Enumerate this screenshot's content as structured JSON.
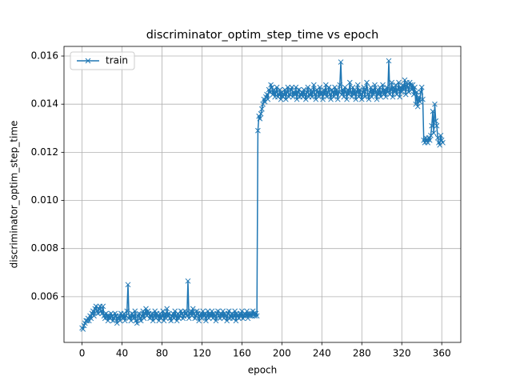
{
  "chart_data": {
    "type": "line",
    "title": "discriminator_optim_step_time vs epoch",
    "xlabel": "epoch",
    "ylabel": "discriminator_optim_step_time",
    "legend": "upper left",
    "grid": true,
    "xlim": [
      -18.05,
      379.05
    ],
    "ylim": [
      0.0041,
      0.0164
    ],
    "xticks": [
      0,
      40,
      80,
      120,
      160,
      200,
      240,
      280,
      320,
      360
    ],
    "yticks": [
      0.006,
      0.008,
      {
        "value": 0.01,
        "label": "0.010"
      },
      0.012,
      0.014,
      0.016
    ],
    "x": [
      0,
      1,
      2,
      3,
      4,
      5,
      6,
      7,
      8,
      9,
      10,
      11,
      12,
      13,
      14,
      15,
      16,
      17,
      18,
      19,
      20,
      21,
      22,
      23,
      24,
      25,
      26,
      27,
      28,
      29,
      30,
      31,
      32,
      33,
      34,
      35,
      36,
      37,
      38,
      39,
      40,
      41,
      42,
      43,
      44,
      45,
      46,
      47,
      48,
      49,
      50,
      51,
      52,
      53,
      54,
      55,
      56,
      57,
      58,
      59,
      60,
      61,
      62,
      63,
      64,
      65,
      66,
      67,
      68,
      69,
      70,
      71,
      72,
      73,
      74,
      75,
      76,
      77,
      78,
      79,
      80,
      81,
      82,
      83,
      84,
      85,
      86,
      87,
      88,
      89,
      90,
      91,
      92,
      93,
      94,
      95,
      96,
      97,
      98,
      99,
      100,
      101,
      102,
      103,
      104,
      105,
      106,
      107,
      108,
      109,
      110,
      111,
      112,
      113,
      114,
      115,
      116,
      117,
      118,
      119,
      120,
      121,
      122,
      123,
      124,
      125,
      126,
      127,
      128,
      129,
      130,
      131,
      132,
      133,
      134,
      135,
      136,
      137,
      138,
      139,
      140,
      141,
      142,
      143,
      144,
      145,
      146,
      147,
      148,
      149,
      150,
      151,
      152,
      153,
      154,
      155,
      156,
      157,
      158,
      159,
      160,
      161,
      162,
      163,
      164,
      165,
      166,
      167,
      168,
      169,
      170,
      171,
      172,
      173,
      174,
      175,
      176,
      177,
      178,
      179,
      180,
      181,
      182,
      183,
      184,
      185,
      186,
      187,
      188,
      189,
      190,
      191,
      192,
      193,
      194,
      195,
      196,
      197,
      198,
      199,
      200,
      201,
      202,
      203,
      204,
      205,
      206,
      207,
      208,
      209,
      210,
      211,
      212,
      213,
      214,
      215,
      216,
      217,
      218,
      219,
      220,
      221,
      222,
      223,
      224,
      225,
      226,
      227,
      228,
      229,
      230,
      231,
      232,
      233,
      234,
      235,
      236,
      237,
      238,
      239,
      240,
      241,
      242,
      243,
      244,
      245,
      246,
      247,
      248,
      249,
      250,
      251,
      252,
      253,
      254,
      255,
      256,
      257,
      258,
      259,
      260,
      261,
      262,
      263,
      264,
      265,
      266,
      267,
      268,
      269,
      270,
      271,
      272,
      273,
      274,
      275,
      276,
      277,
      278,
      279,
      280,
      281,
      282,
      283,
      284,
      285,
      286,
      287,
      288,
      289,
      290,
      291,
      292,
      293,
      294,
      295,
      296,
      297,
      298,
      299,
      300,
      301,
      302,
      303,
      304,
      305,
      306,
      307,
      308,
      309,
      310,
      311,
      312,
      313,
      314,
      315,
      316,
      317,
      318,
      319,
      320,
      321,
      322,
      323,
      324,
      325,
      326,
      327,
      328,
      329,
      330,
      331,
      332,
      333,
      334,
      335,
      336,
      337,
      338,
      339,
      340,
      341,
      342,
      343,
      344,
      345,
      346,
      347,
      348,
      349,
      350,
      351,
      352,
      353,
      354,
      355,
      356,
      357,
      358,
      359,
      360,
      361
    ],
    "series": [
      {
        "name": "train",
        "color": "#1f77b4",
        "values": [
          0.0047,
          0.00465,
          0.0048,
          0.0049,
          0.005,
          0.005,
          0.0051,
          0.005,
          0.0052,
          0.0051,
          0.0053,
          0.0054,
          0.0052,
          0.0055,
          0.0056,
          0.0054,
          0.0053,
          0.0055,
          0.0056,
          0.0054,
          0.0053,
          0.0056,
          0.0052,
          0.0051,
          0.0053,
          0.0052,
          0.005,
          0.0052,
          0.0051,
          0.0053,
          0.0052,
          0.005,
          0.0051,
          0.0053,
          0.0052,
          0.0049,
          0.0051,
          0.0052,
          0.005,
          0.0053,
          0.0052,
          0.0051,
          0.0053,
          0.005,
          0.0052,
          0.0054,
          0.0065,
          0.0051,
          0.0052,
          0.005,
          0.0053,
          0.0052,
          0.0051,
          0.0054,
          0.005,
          0.0049,
          0.0052,
          0.0053,
          0.0051,
          0.005,
          0.0052,
          0.0054,
          0.0051,
          0.0053,
          0.0055,
          0.0052,
          0.0054,
          0.0053,
          0.0051,
          0.0052,
          0.0053,
          0.005,
          0.0052,
          0.0054,
          0.0051,
          0.0053,
          0.0052,
          0.005,
          0.0053,
          0.0051,
          0.0052,
          0.0054,
          0.005,
          0.0053,
          0.0051,
          0.0055,
          0.0052,
          0.0053,
          0.0051,
          0.005,
          0.0052,
          0.0053,
          0.0051,
          0.0054,
          0.0052,
          0.005,
          0.0053,
          0.0051,
          0.0052,
          0.0054,
          0.0053,
          0.0051,
          0.0052,
          0.0054,
          0.0053,
          0.0052,
          0.00665,
          0.0051,
          0.0053,
          0.0054,
          0.0052,
          0.0055,
          0.0053,
          0.0051,
          0.0052,
          0.0054,
          0.0053,
          0.005,
          0.0052,
          0.0053,
          0.0051,
          0.0054,
          0.0052,
          0.0053,
          0.005,
          0.0052,
          0.0054,
          0.0051,
          0.0053,
          0.0052,
          0.0054,
          0.0051,
          0.0053,
          0.0052,
          0.005,
          0.0053,
          0.0054,
          0.0052,
          0.0051,
          0.0053,
          0.0052,
          0.0054,
          0.0051,
          0.0053,
          0.0052,
          0.005,
          0.0053,
          0.0054,
          0.0051,
          0.0052,
          0.0053,
          0.0051,
          0.0052,
          0.0054,
          0.005,
          0.0053,
          0.0052,
          0.0051,
          0.0053,
          0.0052,
          0.0054,
          0.0051,
          0.0052,
          0.0053,
          0.0052,
          0.0054,
          0.0051,
          0.0053,
          0.0052,
          0.0053,
          0.0052,
          0.0054,
          0.0053,
          0.0052,
          0.0053,
          0.0052,
          0.0129,
          0.0135,
          0.0134,
          0.0136,
          0.0138,
          0.014,
          0.0142,
          0.0141,
          0.0143,
          0.0144,
          0.0142,
          0.0146,
          0.0145,
          0.0148,
          0.0147,
          0.0144,
          0.0146,
          0.0143,
          0.0145,
          0.0147,
          0.0143,
          0.0144,
          0.0146,
          0.0142,
          0.0145,
          0.0143,
          0.0144,
          0.0146,
          0.0142,
          0.0145,
          0.0147,
          0.0143,
          0.0144,
          0.0146,
          0.0147,
          0.0143,
          0.0145,
          0.0144,
          0.0147,
          0.0142,
          0.0145,
          0.0146,
          0.0143,
          0.0144,
          0.0145,
          0.0143,
          0.0146,
          0.0144,
          0.0142,
          0.0145,
          0.0147,
          0.0143,
          0.0144,
          0.0146,
          0.0143,
          0.0145,
          0.0148,
          0.0144,
          0.0142,
          0.0146,
          0.0145,
          0.0143,
          0.0147,
          0.0144,
          0.0145,
          0.0142,
          0.0146,
          0.0144,
          0.0148,
          0.0143,
          0.0145,
          0.0147,
          0.0144,
          0.0142,
          0.0146,
          0.0145,
          0.0143,
          0.0147,
          0.0144,
          0.0146,
          0.0142,
          0.0145,
          0.0148,
          0.01575,
          0.0144,
          0.0146,
          0.0143,
          0.0147,
          0.0145,
          0.0142,
          0.0146,
          0.0144,
          0.0149,
          0.0145,
          0.0143,
          0.0147,
          0.0144,
          0.0146,
          0.0142,
          0.0145,
          0.0148,
          0.0143,
          0.0146,
          0.0144,
          0.0142,
          0.0145,
          0.0147,
          0.0143,
          0.0146,
          0.0149,
          0.0144,
          0.0142,
          0.0145,
          0.0147,
          0.0143,
          0.0146,
          0.0144,
          0.0148,
          0.0145,
          0.0142,
          0.0146,
          0.0144,
          0.0147,
          0.0143,
          0.0145,
          0.0148,
          0.0144,
          0.0146,
          0.0143,
          0.0147,
          0.0145,
          0.0158,
          0.0144,
          0.0146,
          0.0149,
          0.0143,
          0.0147,
          0.0145,
          0.0148,
          0.0144,
          0.0146,
          0.0149,
          0.0143,
          0.0147,
          0.0145,
          0.0148,
          0.0146,
          0.015,
          0.0144,
          0.0149,
          0.0147,
          0.0145,
          0.0149,
          0.0148,
          0.0146,
          0.0148,
          0.0144,
          0.0147,
          0.014,
          0.0145,
          0.0139,
          0.0143,
          0.0141,
          0.0145,
          0.0147,
          0.0142,
          0.0125,
          0.0124,
          0.0126,
          0.0125,
          0.0124,
          0.0126,
          0.0125,
          0.0127,
          0.0131,
          0.0137,
          0.0128,
          0.014,
          0.0133,
          0.0131,
          0.0126,
          0.0124,
          0.0123,
          0.0127,
          0.0125,
          0.0124
        ]
      }
    ]
  }
}
